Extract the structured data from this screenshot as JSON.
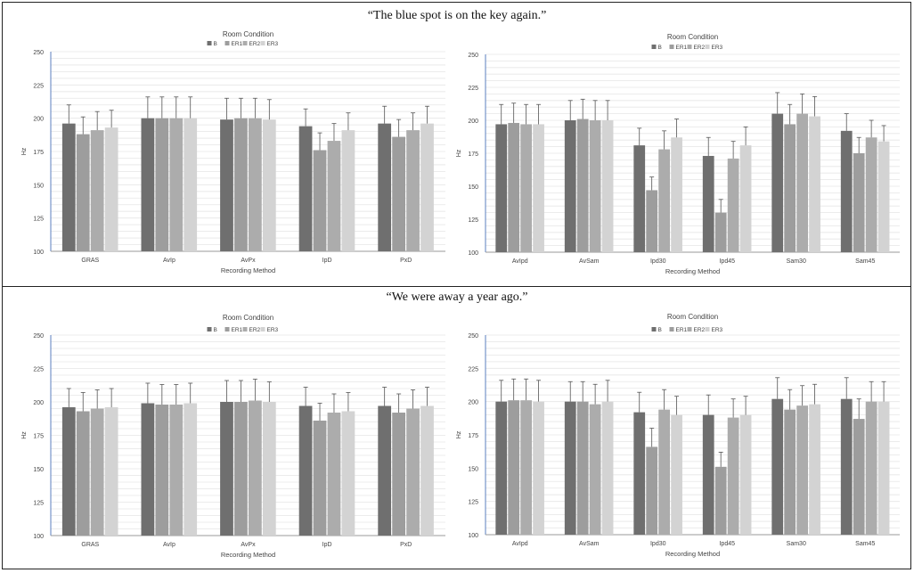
{
  "panels": [
    {
      "title": "“The blue spot is on the key again.”"
    },
    {
      "title": "“We were away a year ago.”"
    }
  ],
  "series_colors": [
    "#6f6f6f",
    "#9d9d9d",
    "#acacac",
    "#d3d3d3"
  ],
  "chart_data": [
    {
      "type": "bar",
      "title": "Room Condition",
      "xlabel": "Recording Method",
      "ylabel": "Hz",
      "ylim": [
        100,
        250
      ],
      "yticks": [
        "100",
        "125",
        "150",
        "175",
        "200",
        "225",
        "250"
      ],
      "categories": [
        "GRAS",
        "AvIp",
        "AvPx",
        "IpD",
        "PxD"
      ],
      "series": [
        {
          "name": "B",
          "values": [
            196,
            200,
            199,
            194,
            196
          ],
          "errors": [
            14,
            16,
            16,
            13,
            13
          ]
        },
        {
          "name": "ER1",
          "values": [
            188,
            200,
            200,
            176,
            186
          ],
          "errors": [
            13,
            16,
            15,
            13,
            13
          ]
        },
        {
          "name": "ER2",
          "values": [
            191,
            200,
            200,
            183,
            191
          ],
          "errors": [
            14,
            16,
            15,
            13,
            13
          ]
        },
        {
          "name": "ER3",
          "values": [
            193,
            200,
            199,
            191,
            196
          ],
          "errors": [
            13,
            16,
            15,
            13,
            13
          ]
        }
      ]
    },
    {
      "type": "bar",
      "title": "Room Condition",
      "xlabel": "Recording Method",
      "ylabel": "Hz",
      "ylim": [
        100,
        250
      ],
      "yticks": [
        "100",
        "125",
        "150",
        "175",
        "200",
        "225",
        "250"
      ],
      "categories": [
        "AvIpd",
        "AvSam",
        "Ipd30",
        "Ipd45",
        "Sam30",
        "Sam45"
      ],
      "series": [
        {
          "name": "B",
          "values": [
            197,
            200,
            181,
            173,
            205,
            192
          ],
          "errors": [
            15,
            15,
            13,
            14,
            16,
            13
          ]
        },
        {
          "name": "ER1",
          "values": [
            198,
            201,
            147,
            130,
            197,
            175
          ],
          "errors": [
            15,
            15,
            10,
            10,
            15,
            12
          ]
        },
        {
          "name": "ER2",
          "values": [
            197,
            200,
            178,
            171,
            205,
            187
          ],
          "errors": [
            15,
            15,
            14,
            13,
            15,
            13
          ]
        },
        {
          "name": "ER3",
          "values": [
            197,
            200,
            187,
            181,
            203,
            184
          ],
          "errors": [
            15,
            15,
            14,
            14,
            15,
            12
          ]
        }
      ]
    },
    {
      "type": "bar",
      "title": "Room Condition",
      "xlabel": "Recording Method",
      "ylabel": "Hz",
      "ylim": [
        100,
        250
      ],
      "yticks": [
        "100",
        "125",
        "150",
        "175",
        "200",
        "225",
        "250"
      ],
      "categories": [
        "GRAS",
        "AvIp",
        "AvPx",
        "IpD",
        "PxD"
      ],
      "series": [
        {
          "name": "B",
          "values": [
            196,
            199,
            200,
            197,
            197
          ],
          "errors": [
            14,
            15,
            16,
            14,
            14
          ]
        },
        {
          "name": "ER1",
          "values": [
            193,
            198,
            200,
            186,
            192
          ],
          "errors": [
            14,
            15,
            16,
            13,
            14
          ]
        },
        {
          "name": "ER2",
          "values": [
            195,
            198,
            201,
            192,
            195
          ],
          "errors": [
            14,
            15,
            16,
            14,
            14
          ]
        },
        {
          "name": "ER3",
          "values": [
            196,
            199,
            200,
            193,
            197
          ],
          "errors": [
            14,
            15,
            15,
            14,
            14
          ]
        }
      ]
    },
    {
      "type": "bar",
      "title": "Room Condition",
      "xlabel": "Recording Method",
      "ylabel": "Hz",
      "ylim": [
        100,
        250
      ],
      "yticks": [
        "100",
        "125",
        "150",
        "175",
        "200",
        "225",
        "250"
      ],
      "categories": [
        "AvIpd",
        "AvSam",
        "Ipd30",
        "Ipd45",
        "Sam30",
        "Sam45"
      ],
      "series": [
        {
          "name": "B",
          "values": [
            200,
            200,
            192,
            190,
            202,
            202
          ],
          "errors": [
            16,
            15,
            15,
            15,
            16,
            16
          ]
        },
        {
          "name": "ER1",
          "values": [
            201,
            200,
            166,
            151,
            194,
            187
          ],
          "errors": [
            16,
            15,
            14,
            11,
            15,
            15
          ]
        },
        {
          "name": "ER2",
          "values": [
            201,
            198,
            194,
            188,
            197,
            200
          ],
          "errors": [
            16,
            15,
            15,
            14,
            15,
            15
          ]
        },
        {
          "name": "ER3",
          "values": [
            200,
            200,
            190,
            190,
            198,
            200
          ],
          "errors": [
            16,
            16,
            14,
            14,
            15,
            15
          ]
        }
      ]
    }
  ]
}
